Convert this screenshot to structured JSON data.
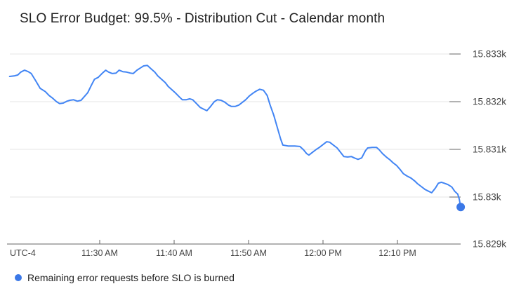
{
  "chart_data": {
    "type": "line",
    "title": "SLO Error Budget: 99.5% - Distribution Cut - Calendar month",
    "legend_position": "bottom",
    "x_axis": {
      "corner_label": "UTC-4",
      "unit": "time of day, minutes after 11:00 AM",
      "domain": [
        17.9,
        78.5
      ],
      "grid": false,
      "ticks": [
        {
          "t": 30,
          "label": "11:30 AM"
        },
        {
          "t": 40,
          "label": "11:40 AM"
        },
        {
          "t": 50,
          "label": "11:50 AM"
        },
        {
          "t": 60,
          "label": "12:00 PM"
        },
        {
          "t": 70,
          "label": "12:10 PM"
        }
      ]
    },
    "y_axis": {
      "unit": "remaining error requests",
      "domain": [
        15829,
        15833.25
      ],
      "grid": true,
      "ticks": [
        {
          "v": 15833,
          "label": "15.833k"
        },
        {
          "v": 15832,
          "label": "15.832k"
        },
        {
          "v": 15831,
          "label": "15.831k"
        },
        {
          "v": 15830,
          "label": "15.83k"
        },
        {
          "v": 15829,
          "label": "15.829k"
        }
      ]
    },
    "series": [
      {
        "name": "Remaining error requests before SLO is burned",
        "color": "#4285f4",
        "end_dot": true,
        "points": [
          [
            17.9,
            15832.53
          ],
          [
            18.5,
            15832.54
          ],
          [
            19.0,
            15832.56
          ],
          [
            19.4,
            15832.62
          ],
          [
            19.9,
            15832.66
          ],
          [
            20.4,
            15832.63
          ],
          [
            20.8,
            15832.59
          ],
          [
            21.4,
            15832.44
          ],
          [
            22.0,
            15832.28
          ],
          [
            22.7,
            15832.21
          ],
          [
            23.2,
            15832.13
          ],
          [
            23.7,
            15832.07
          ],
          [
            24.2,
            15832.0
          ],
          [
            24.6,
            15831.96
          ],
          [
            25.1,
            15831.97
          ],
          [
            25.6,
            15832.01
          ],
          [
            26.0,
            15832.03
          ],
          [
            26.5,
            15832.04
          ],
          [
            27.0,
            15832.01
          ],
          [
            27.5,
            15832.03
          ],
          [
            27.9,
            15832.1
          ],
          [
            28.4,
            15832.19
          ],
          [
            28.9,
            15832.35
          ],
          [
            29.3,
            15832.47
          ],
          [
            29.8,
            15832.51
          ],
          [
            30.3,
            15832.59
          ],
          [
            30.8,
            15832.66
          ],
          [
            31.2,
            15832.62
          ],
          [
            31.7,
            15832.59
          ],
          [
            32.2,
            15832.6
          ],
          [
            32.6,
            15832.66
          ],
          [
            33.1,
            15832.63
          ],
          [
            33.6,
            15832.62
          ],
          [
            34.1,
            15832.6
          ],
          [
            34.5,
            15832.59
          ],
          [
            35.0,
            15832.66
          ],
          [
            35.5,
            15832.71
          ],
          [
            35.9,
            15832.75
          ],
          [
            36.4,
            15832.76
          ],
          [
            36.9,
            15832.69
          ],
          [
            37.4,
            15832.62
          ],
          [
            37.8,
            15832.54
          ],
          [
            38.3,
            15832.47
          ],
          [
            38.8,
            15832.4
          ],
          [
            39.2,
            15832.32
          ],
          [
            39.7,
            15832.25
          ],
          [
            40.2,
            15832.18
          ],
          [
            40.7,
            15832.1
          ],
          [
            41.1,
            15832.04
          ],
          [
            41.6,
            15832.04
          ],
          [
            42.1,
            15832.06
          ],
          [
            42.5,
            15832.04
          ],
          [
            43.0,
            15831.96
          ],
          [
            43.5,
            15831.88
          ],
          [
            44.0,
            15831.84
          ],
          [
            44.4,
            15831.81
          ],
          [
            44.9,
            15831.9
          ],
          [
            45.4,
            15832.0
          ],
          [
            45.8,
            15832.04
          ],
          [
            46.3,
            15832.03
          ],
          [
            46.8,
            15831.99
          ],
          [
            47.3,
            15831.93
          ],
          [
            47.7,
            15831.9
          ],
          [
            48.2,
            15831.9
          ],
          [
            48.7,
            15831.93
          ],
          [
            49.2,
            15831.99
          ],
          [
            49.6,
            15832.04
          ],
          [
            50.1,
            15832.12
          ],
          [
            50.6,
            15832.18
          ],
          [
            51.0,
            15832.22
          ],
          [
            51.5,
            15832.26
          ],
          [
            52.0,
            15832.24
          ],
          [
            52.5,
            15832.13
          ],
          [
            52.9,
            15831.93
          ],
          [
            53.4,
            15831.71
          ],
          [
            53.9,
            15831.44
          ],
          [
            54.3,
            15831.22
          ],
          [
            54.6,
            15831.09
          ],
          [
            55.3,
            15831.07
          ],
          [
            56.2,
            15831.07
          ],
          [
            56.9,
            15831.06
          ],
          [
            57.4,
            15830.99
          ],
          [
            57.8,
            15830.91
          ],
          [
            58.1,
            15830.88
          ],
          [
            58.6,
            15830.94
          ],
          [
            59.1,
            15831.0
          ],
          [
            59.5,
            15831.04
          ],
          [
            60.0,
            15831.1
          ],
          [
            60.5,
            15831.16
          ],
          [
            60.9,
            15831.15
          ],
          [
            61.4,
            15831.09
          ],
          [
            61.9,
            15831.03
          ],
          [
            62.4,
            15830.93
          ],
          [
            62.8,
            15830.85
          ],
          [
            63.3,
            15830.84
          ],
          [
            63.8,
            15830.85
          ],
          [
            64.2,
            15830.82
          ],
          [
            64.7,
            15830.79
          ],
          [
            65.2,
            15830.82
          ],
          [
            65.7,
            15830.97
          ],
          [
            66.0,
            15831.03
          ],
          [
            66.6,
            15831.04
          ],
          [
            67.2,
            15831.04
          ],
          [
            67.5,
            15831.0
          ],
          [
            68.0,
            15830.91
          ],
          [
            68.5,
            15830.84
          ],
          [
            69.0,
            15830.78
          ],
          [
            69.4,
            15830.72
          ],
          [
            69.9,
            15830.66
          ],
          [
            70.4,
            15830.57
          ],
          [
            70.8,
            15830.49
          ],
          [
            71.3,
            15830.44
          ],
          [
            71.8,
            15830.4
          ],
          [
            72.3,
            15830.34
          ],
          [
            72.7,
            15830.28
          ],
          [
            73.2,
            15830.22
          ],
          [
            73.7,
            15830.16
          ],
          [
            74.2,
            15830.12
          ],
          [
            74.6,
            15830.09
          ],
          [
            75.1,
            15830.19
          ],
          [
            75.5,
            15830.29
          ],
          [
            75.9,
            15830.31
          ],
          [
            76.3,
            15830.29
          ],
          [
            76.8,
            15830.26
          ],
          [
            77.3,
            15830.21
          ],
          [
            77.7,
            15830.12
          ],
          [
            78.1,
            15830.06
          ],
          [
            78.3,
            15829.96
          ],
          [
            78.5,
            15829.79
          ]
        ]
      }
    ]
  },
  "legend": {
    "label": "Remaining error requests before SLO is burned",
    "marker_color": "#3b78e7"
  },
  "style": {
    "background": "#ffffff",
    "line_color": "#4285f4",
    "end_dot_color": "#3b78e7",
    "grid_color": "#e6e6e6",
    "axis_color": "#666666",
    "tick_label_color": "#444444",
    "title_color": "#212121"
  }
}
